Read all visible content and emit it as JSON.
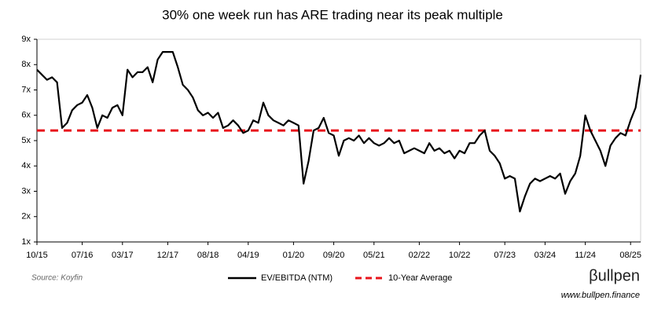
{
  "chart_data": {
    "type": "line",
    "title": "30% one week run has ARE trading near its peak multiple",
    "x": [
      "10/15",
      "11/15",
      "12/15",
      "01/16",
      "02/16",
      "03/16",
      "04/16",
      "05/16",
      "06/16",
      "07/16",
      "08/16",
      "09/16",
      "10/16",
      "11/16",
      "12/16",
      "01/17",
      "02/17",
      "03/17",
      "04/17",
      "05/17",
      "06/17",
      "07/17",
      "08/17",
      "09/17",
      "10/17",
      "11/17",
      "12/17",
      "01/18",
      "02/18",
      "03/18",
      "04/18",
      "05/18",
      "06/18",
      "07/18",
      "08/18",
      "09/18",
      "10/18",
      "11/18",
      "12/18",
      "01/19",
      "02/19",
      "03/19",
      "04/19",
      "05/19",
      "06/19",
      "07/19",
      "08/19",
      "09/19",
      "10/19",
      "11/19",
      "12/19",
      "01/20",
      "02/20",
      "03/20",
      "04/20",
      "05/20",
      "06/20",
      "07/20",
      "08/20",
      "09/20",
      "10/20",
      "11/20",
      "12/20",
      "01/21",
      "02/21",
      "03/21",
      "04/21",
      "05/21",
      "06/21",
      "07/21",
      "08/21",
      "09/21",
      "10/21",
      "11/21",
      "12/21",
      "01/22",
      "02/22",
      "03/22",
      "04/22",
      "05/22",
      "06/22",
      "07/22",
      "08/22",
      "09/22",
      "10/22",
      "11/22",
      "12/22",
      "01/23",
      "02/23",
      "03/23",
      "04/23",
      "05/23",
      "06/23",
      "07/23",
      "08/23",
      "09/23",
      "10/23",
      "11/23",
      "12/23",
      "01/24",
      "02/24",
      "03/24",
      "04/24",
      "05/24",
      "06/24",
      "07/24",
      "08/24",
      "09/24",
      "10/24",
      "11/24",
      "12/24",
      "01/25",
      "02/25",
      "03/25",
      "04/25",
      "05/25",
      "06/25",
      "07/25",
      "08/25",
      "09/25",
      "10/25"
    ],
    "series": [
      {
        "name": "EV/EBITDA (NTM)",
        "color": "#000000",
        "values": [
          7.8,
          7.6,
          7.4,
          7.5,
          7.3,
          5.5,
          5.7,
          6.2,
          6.4,
          6.5,
          6.8,
          6.3,
          5.5,
          6.0,
          5.9,
          6.3,
          6.4,
          6.0,
          7.8,
          7.5,
          7.7,
          7.7,
          7.9,
          7.3,
          8.2,
          8.5,
          8.5,
          8.5,
          7.9,
          7.2,
          7.0,
          6.7,
          6.2,
          6.0,
          6.1,
          5.9,
          6.1,
          5.5,
          5.6,
          5.8,
          5.6,
          5.3,
          5.4,
          5.8,
          5.7,
          6.5,
          6.0,
          5.8,
          5.7,
          5.6,
          5.8,
          5.7,
          5.6,
          3.3,
          4.2,
          5.4,
          5.5,
          5.9,
          5.3,
          5.2,
          4.4,
          5.0,
          5.1,
          5.0,
          5.2,
          4.9,
          5.1,
          4.9,
          4.8,
          4.9,
          5.1,
          4.9,
          5.0,
          4.5,
          4.6,
          4.7,
          4.6,
          4.5,
          4.9,
          4.6,
          4.7,
          4.5,
          4.6,
          4.3,
          4.6,
          4.5,
          4.9,
          4.9,
          5.2,
          5.4,
          4.6,
          4.4,
          4.1,
          3.5,
          3.6,
          3.5,
          2.2,
          2.8,
          3.3,
          3.5,
          3.4,
          3.5,
          3.6,
          3.5,
          3.7,
          2.9,
          3.4,
          3.7,
          4.4,
          6.0,
          5.4,
          5.0,
          4.6,
          4.0,
          4.8,
          5.1,
          5.3,
          5.2,
          5.8,
          6.3,
          7.6
        ]
      }
    ],
    "average_line": {
      "name": "10-Year Average",
      "value": 5.4,
      "color": "#e8141b"
    },
    "xlim": [
      "10/15",
      "10/25"
    ],
    "xticks": [
      "10/15",
      "07/16",
      "03/17",
      "12/17",
      "08/18",
      "04/19",
      "01/20",
      "09/20",
      "05/21",
      "02/22",
      "10/22",
      "07/23",
      "03/24",
      "11/24",
      "08/25"
    ],
    "ylim": [
      1,
      9
    ],
    "yticks": [
      {
        "value": 1,
        "label": "1x"
      },
      {
        "value": 2,
        "label": "2x"
      },
      {
        "value": 3,
        "label": "3x"
      },
      {
        "value": 4,
        "label": "4x"
      },
      {
        "value": 5,
        "label": "5x"
      },
      {
        "value": 6,
        "label": "6x"
      },
      {
        "value": 7,
        "label": "7x"
      },
      {
        "value": 8,
        "label": "8x"
      },
      {
        "value": 9,
        "label": "9x"
      }
    ],
    "grid": false,
    "source": "Source: Koyfin",
    "logo": "βullpen",
    "website": "www.bullpen.finance"
  }
}
